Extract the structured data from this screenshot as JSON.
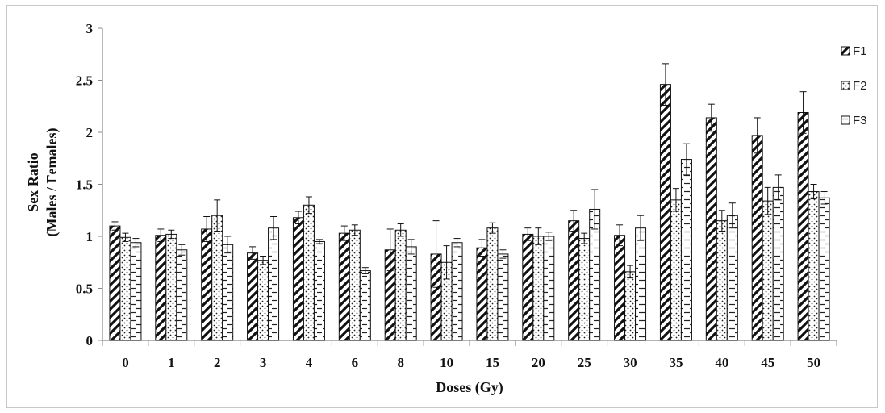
{
  "chart_data": {
    "type": "bar",
    "xlabel": "Doses (Gy)",
    "ylabel_line1": "Sex Ratio",
    "ylabel_line2": "(Males / Females)",
    "categories": [
      "0",
      "1",
      "2",
      "3",
      "4",
      "6",
      "8",
      "10",
      "15",
      "20",
      "25",
      "30",
      "35",
      "40",
      "45",
      "50"
    ],
    "ylim": [
      0,
      3
    ],
    "yticks": [
      "0",
      "0.5",
      "1",
      "1.5",
      "2",
      "2.5",
      "3"
    ],
    "grid": false,
    "legend_position": "right",
    "series": [
      {
        "name": "F1",
        "pattern": "diagonal-stripes",
        "values": [
          1.1,
          1.01,
          1.07,
          0.84,
          1.18,
          1.03,
          0.87,
          0.83,
          0.89,
          1.02,
          1.15,
          1.01,
          2.46,
          2.14,
          1.97,
          2.19
        ],
        "errors": [
          0.04,
          0.06,
          0.12,
          0.06,
          0.06,
          0.07,
          0.2,
          0.32,
          0.08,
          0.06,
          0.1,
          0.1,
          0.2,
          0.13,
          0.17,
          0.2
        ]
      },
      {
        "name": "F2",
        "pattern": "dots",
        "values": [
          0.99,
          1.02,
          1.2,
          0.77,
          1.3,
          1.06,
          1.06,
          0.75,
          1.08,
          1.0,
          0.98,
          0.66,
          1.35,
          1.15,
          1.34,
          1.43
        ],
        "errors": [
          0.04,
          0.04,
          0.15,
          0.04,
          0.08,
          0.05,
          0.06,
          0.16,
          0.05,
          0.08,
          0.05,
          0.06,
          0.11,
          0.1,
          0.13,
          0.07
        ]
      },
      {
        "name": "F3",
        "pattern": "horizontal-dashes",
        "values": [
          0.94,
          0.87,
          0.92,
          1.08,
          0.95,
          0.67,
          0.9,
          0.94,
          0.83,
          1.0,
          1.26,
          1.08,
          1.74,
          1.2,
          1.47,
          1.37
        ],
        "errors": [
          0.04,
          0.05,
          0.08,
          0.11,
          0.02,
          0.03,
          0.07,
          0.04,
          0.04,
          0.04,
          0.19,
          0.12,
          0.15,
          0.12,
          0.12,
          0.06
        ]
      }
    ]
  }
}
